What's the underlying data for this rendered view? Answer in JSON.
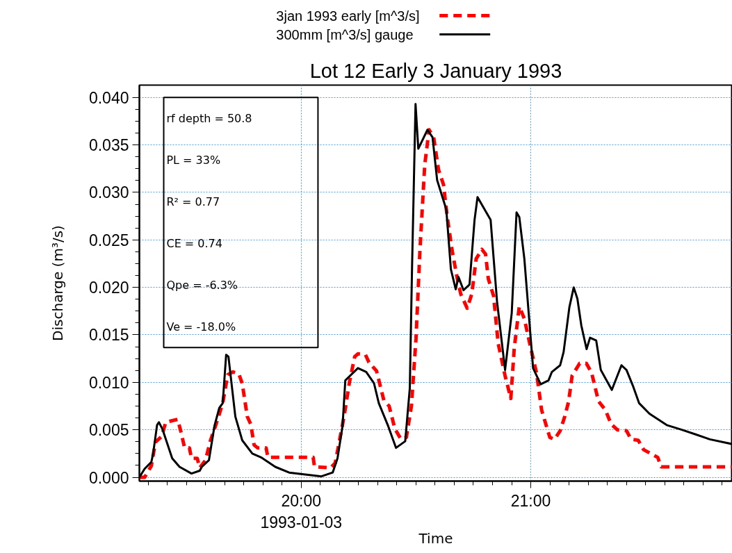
{
  "chart_data": {
    "type": "line",
    "title": "Lot 12 Early 3 January 1993",
    "xlabel": "Time",
    "ylabel": "Discharge (m³/s)",
    "xlim": [
      19.295,
      21.878
    ],
    "ylim": [
      -0.0004,
      0.0413
    ],
    "xticks": [
      {
        "value": 19.3333,
        "label": null
      },
      {
        "value": 19.4167,
        "label": null
      },
      {
        "value": 19.5,
        "label": null
      },
      {
        "value": 19.5833,
        "label": null
      },
      {
        "value": 19.6667,
        "label": null
      },
      {
        "value": 19.75,
        "label": null
      },
      {
        "value": 19.8333,
        "label": null
      },
      {
        "value": 19.9167,
        "label": null
      },
      {
        "value": 20,
        "label": "20:00"
      },
      {
        "value": 20.0833,
        "label": null
      },
      {
        "value": 20.1667,
        "label": null
      },
      {
        "value": 20.25,
        "label": null
      },
      {
        "value": 20.3333,
        "label": null
      },
      {
        "value": 20.4167,
        "label": null
      },
      {
        "value": 20.5,
        "label": null
      },
      {
        "value": 20.5833,
        "label": null
      },
      {
        "value": 20.6667,
        "label": null
      },
      {
        "value": 20.75,
        "label": null
      },
      {
        "value": 20.8333,
        "label": null
      },
      {
        "value": 20.9167,
        "label": null
      },
      {
        "value": 21,
        "label": "21:00"
      },
      {
        "value": 21.0833,
        "label": null
      },
      {
        "value": 21.1667,
        "label": null
      },
      {
        "value": 21.25,
        "label": null
      },
      {
        "value": 21.3333,
        "label": null
      },
      {
        "value": 21.4167,
        "label": null
      },
      {
        "value": 21.5,
        "label": null
      },
      {
        "value": 21.5833,
        "label": null
      },
      {
        "value": 21.6667,
        "label": null
      },
      {
        "value": 21.75,
        "label": null
      },
      {
        "value": 21.8333,
        "label": null
      }
    ],
    "yticks": [
      {
        "value": 0,
        "label": "0.000"
      },
      {
        "value": 0.00125,
        "label": null
      },
      {
        "value": 0.0025,
        "label": null
      },
      {
        "value": 0.00375,
        "label": null
      },
      {
        "value": 0.005,
        "label": "0.005"
      },
      {
        "value": 0.00625,
        "label": null
      },
      {
        "value": 0.0075,
        "label": null
      },
      {
        "value": 0.00875,
        "label": null
      },
      {
        "value": 0.01,
        "label": "0.010"
      },
      {
        "value": 0.01125,
        "label": null
      },
      {
        "value": 0.0125,
        "label": null
      },
      {
        "value": 0.01375,
        "label": null
      },
      {
        "value": 0.015,
        "label": "0.015"
      },
      {
        "value": 0.01625,
        "label": null
      },
      {
        "value": 0.0175,
        "label": null
      },
      {
        "value": 0.01875,
        "label": null
      },
      {
        "value": 0.02,
        "label": "0.020"
      },
      {
        "value": 0.02125,
        "label": null
      },
      {
        "value": 0.0225,
        "label": null
      },
      {
        "value": 0.02375,
        "label": null
      },
      {
        "value": 0.025,
        "label": "0.025"
      },
      {
        "value": 0.02625,
        "label": null
      },
      {
        "value": 0.0275,
        "label": null
      },
      {
        "value": 0.02875,
        "label": null
      },
      {
        "value": 0.03,
        "label": "0.030"
      },
      {
        "value": 0.03125,
        "label": null
      },
      {
        "value": 0.0325,
        "label": null
      },
      {
        "value": 0.03375,
        "label": null
      },
      {
        "value": 0.035,
        "label": "0.035"
      },
      {
        "value": 0.03625,
        "label": null
      },
      {
        "value": 0.0375,
        "label": null
      },
      {
        "value": 0.03875,
        "label": null
      },
      {
        "value": 0.04,
        "label": "0.040"
      }
    ],
    "grid": true,
    "legend": "top left",
    "marker": "none",
    "annotations": [
      "rf depth = 50.8",
      "PL = 33%",
      "R² = 0.77",
      "CE = 0.74",
      "Qpe = -6.3%",
      "Ve = -18.0%",
      "1993-01-03"
    ],
    "series": [
      {
        "name": "3jan 1993 early [m^3/s]",
        "color": "#ff0000",
        "line_style": "dashed",
        "x": [
          19.295,
          19.318,
          19.347,
          19.365,
          19.392,
          19.41,
          19.462,
          19.477,
          19.492,
          19.513,
          19.522,
          19.547,
          19.558,
          19.583,
          19.605,
          19.628,
          19.658,
          19.68,
          19.703,
          19.728,
          19.743,
          19.755,
          19.765,
          19.78,
          19.795,
          19.81,
          19.847,
          19.855,
          20.052,
          20.058,
          20.128,
          20.148,
          20.167,
          20.188,
          20.21,
          20.233,
          20.247,
          20.28,
          20.295,
          20.328,
          20.36,
          20.383,
          20.408,
          20.435,
          20.458,
          20.48,
          20.5,
          20.517,
          20.538,
          20.557,
          20.577,
          20.598,
          20.62,
          20.635,
          20.658,
          20.68,
          20.695,
          20.723,
          20.743,
          20.762,
          20.787,
          20.803,
          20.815,
          20.838,
          20.858,
          20.888,
          20.913,
          20.928,
          20.95,
          20.972,
          20.998,
          21.025,
          21.047,
          21.068,
          21.083,
          21.103,
          21.128,
          21.148,
          21.165,
          21.18,
          21.213,
          21.242,
          21.265,
          21.295,
          21.325,
          21.35,
          21.377,
          21.417,
          21.437,
          21.468,
          21.492,
          21.553,
          21.568,
          21.877
        ],
        "values": [
          0,
          0,
          0.0012,
          0.0037,
          0.0043,
          0.0058,
          0.0061,
          0.0047,
          0.0031,
          0.0031,
          0.002,
          0.002,
          0.001,
          0.0018,
          0.0039,
          0.0055,
          0.0078,
          0.0108,
          0.0111,
          0.0109,
          0.0099,
          0.008,
          0.0064,
          0.0056,
          0.0034,
          0.0031,
          0.0031,
          0.0021,
          0.0021,
          0.0011,
          0.001,
          0.0015,
          0.0039,
          0.0066,
          0.01,
          0.0127,
          0.013,
          0.0129,
          0.0121,
          0.0112,
          0.0081,
          0.0075,
          0.0051,
          0.004,
          0.0042,
          0.0075,
          0.0146,
          0.0238,
          0.0329,
          0.0366,
          0.0358,
          0.0324,
          0.0308,
          0.0276,
          0.0238,
          0.0209,
          0.0193,
          0.0178,
          0.0193,
          0.023,
          0.024,
          0.0235,
          0.0209,
          0.0191,
          0.0141,
          0.0107,
          0.0083,
          0.0136,
          0.018,
          0.0167,
          0.0138,
          0.011,
          0.0071,
          0.0054,
          0.0042,
          0.004,
          0.0049,
          0.0064,
          0.008,
          0.0107,
          0.012,
          0.012,
          0.011,
          0.008,
          0.0071,
          0.0056,
          0.005,
          0.0049,
          0.004,
          0.0039,
          0.0029,
          0.0021,
          0.0011,
          0.0011
        ]
      },
      {
        "name": "300mm [m^3/s] gauge",
        "color": "#000000",
        "line_style": "solid",
        "x": [
          19.295,
          19.318,
          19.347,
          19.355,
          19.372,
          19.38,
          19.395,
          19.438,
          19.47,
          19.522,
          19.558,
          19.567,
          19.598,
          19.622,
          19.643,
          19.658,
          19.673,
          19.683,
          19.713,
          19.743,
          19.787,
          19.825,
          19.887,
          19.947,
          20.088,
          20.137,
          20.158,
          20.18,
          20.192,
          20.247,
          20.283,
          20.317,
          20.338,
          20.377,
          20.413,
          20.453,
          20.473,
          20.483,
          20.498,
          20.51,
          20.55,
          20.572,
          20.592,
          20.632,
          20.652,
          20.673,
          20.685,
          20.707,
          20.733,
          20.755,
          20.768,
          20.825,
          20.853,
          20.888,
          20.917,
          20.938,
          20.95,
          20.972,
          21.01,
          21.043,
          21.077,
          21.092,
          21.128,
          21.143,
          21.168,
          21.187,
          21.203,
          21.22,
          21.243,
          21.258,
          21.285,
          21.305,
          21.353,
          21.395,
          21.417,
          21.447,
          21.472,
          21.517,
          21.592,
          21.658,
          21.72,
          21.78,
          21.877
        ],
        "values": [
          0,
          0.0009,
          0.0016,
          0.0025,
          0.0055,
          0.0058,
          0.0051,
          0.002,
          0.0011,
          0.0004,
          0.0007,
          0.0011,
          0.0018,
          0.0054,
          0.0073,
          0.0078,
          0.0129,
          0.0127,
          0.0064,
          0.0039,
          0.0025,
          0.0021,
          0.0011,
          0.0005,
          0.0001,
          0.0005,
          0.002,
          0.0054,
          0.0102,
          0.0115,
          0.0111,
          0.0099,
          0.0078,
          0.0055,
          0.0031,
          0.0038,
          0.0094,
          0.0224,
          0.0393,
          0.0346,
          0.0366,
          0.0358,
          0.0313,
          0.0282,
          0.0219,
          0.0198,
          0.0211,
          0.0197,
          0.0203,
          0.0271,
          0.0295,
          0.0271,
          0.0185,
          0.0113,
          0.0173,
          0.0279,
          0.0274,
          0.023,
          0.0115,
          0.0098,
          0.0102,
          0.0111,
          0.0118,
          0.0132,
          0.0179,
          0.02,
          0.0188,
          0.016,
          0.0135,
          0.0147,
          0.0144,
          0.0113,
          0.0092,
          0.0118,
          0.0113,
          0.0095,
          0.0078,
          0.0067,
          0.0055,
          0.005,
          0.0045,
          0.004,
          0.0035
        ]
      }
    ]
  }
}
